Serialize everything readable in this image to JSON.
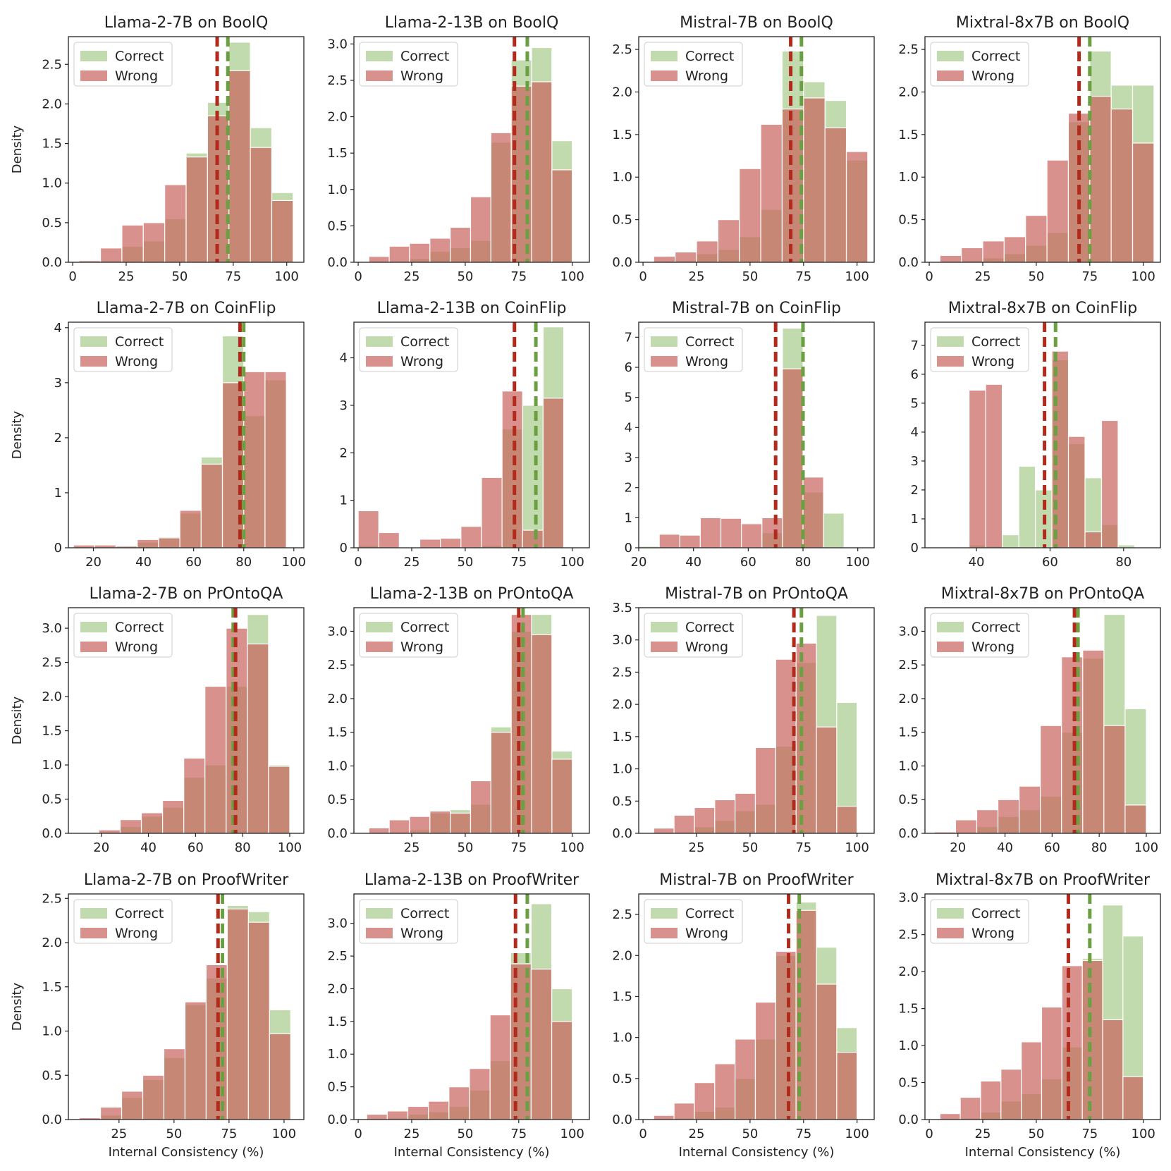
{
  "figure": {
    "legend": {
      "correct": "Correct",
      "wrong": "Wrong"
    },
    "xlabel": "Internal Consistency (%)",
    "ylabel": "Density",
    "colors": {
      "correct_fill": "#a9cc8f",
      "wrong_fill": "#c9675f",
      "correct_line": "#6aa041",
      "wrong_line": "#b22a1c",
      "overlap_hint": "#b07a5a"
    }
  },
  "chart_data": [
    {
      "type": "bar",
      "title": "Llama-2-7B on BoolQ",
      "xlim": [
        -2,
        108
      ],
      "ylim": [
        0,
        2.85
      ],
      "xticks": [
        0,
        25,
        50,
        75,
        100
      ],
      "yticks": [
        0.0,
        0.5,
        1.0,
        1.5,
        2.0,
        2.5
      ],
      "correct": {
        "edges": [
          3,
          13,
          23,
          33,
          43,
          53,
          63,
          73,
          83,
          93,
          103
        ],
        "values": [
          0.0,
          0.02,
          0.2,
          0.27,
          0.55,
          1.38,
          2.02,
          2.78,
          1.7,
          0.88
        ]
      },
      "wrong": {
        "edges": [
          3,
          13,
          23,
          33,
          43,
          53,
          63,
          73,
          83,
          93,
          103
        ],
        "values": [
          0.02,
          0.18,
          0.47,
          0.5,
          0.98,
          1.33,
          1.85,
          2.42,
          1.45,
          0.78
        ]
      },
      "mean_correct": 72.5,
      "mean_wrong": 67.5
    },
    {
      "type": "bar",
      "title": "Llama-2-13B on BoolQ",
      "xlim": [
        -2,
        108
      ],
      "ylim": [
        0,
        3.1
      ],
      "xticks": [
        0,
        25,
        50,
        75,
        100
      ],
      "yticks": [
        0.0,
        0.5,
        1.0,
        1.5,
        2.0,
        2.5,
        3.0
      ],
      "correct": {
        "edges": [
          5,
          14.5,
          24,
          33.5,
          43,
          52.5,
          62,
          71.5,
          81,
          90.5,
          100
        ],
        "values": [
          0.0,
          0.0,
          0.05,
          0.15,
          0.2,
          0.3,
          1.65,
          2.78,
          2.95,
          1.67
        ]
      },
      "wrong": {
        "edges": [
          5,
          14.5,
          24,
          33.5,
          43,
          52.5,
          62,
          71.5,
          81,
          90.5,
          100
        ],
        "values": [
          0.08,
          0.22,
          0.26,
          0.33,
          0.48,
          0.9,
          1.78,
          2.42,
          2.48,
          1.27
        ]
      },
      "mean_correct": 79,
      "mean_wrong": 73
    },
    {
      "type": "bar",
      "title": "Mistral-7B on BoolQ",
      "xlim": [
        -2,
        108
      ],
      "ylim": [
        0,
        2.65
      ],
      "xticks": [
        0,
        25,
        50,
        75,
        100
      ],
      "yticks": [
        0.0,
        0.5,
        1.0,
        1.5,
        2.0,
        2.5
      ],
      "correct": {
        "edges": [
          5,
          15,
          25,
          35,
          45,
          55,
          65,
          75,
          85,
          95,
          105
        ],
        "values": [
          0.0,
          0.02,
          0.1,
          0.15,
          0.3,
          0.62,
          2.48,
          2.12,
          1.9,
          1.2
        ]
      },
      "wrong": {
        "edges": [
          5,
          15,
          25,
          35,
          45,
          55,
          65,
          75,
          85,
          95,
          105
        ],
        "values": [
          0.07,
          0.12,
          0.25,
          0.5,
          1.1,
          1.62,
          1.8,
          1.93,
          1.58,
          1.3
        ]
      },
      "mean_correct": 74,
      "mean_wrong": 69
    },
    {
      "type": "bar",
      "title": "Mixtral-8x7B on BoolQ",
      "xlim": [
        -2,
        108
      ],
      "ylim": [
        0,
        2.65
      ],
      "xticks": [
        0,
        25,
        50,
        75,
        100
      ],
      "yticks": [
        0.0,
        0.5,
        1.0,
        1.5,
        2.0,
        2.5
      ],
      "correct": {
        "edges": [
          5,
          15,
          25,
          35,
          45,
          55,
          65,
          75,
          85,
          95,
          105
        ],
        "values": [
          0.0,
          0.02,
          0.05,
          0.1,
          0.2,
          0.35,
          1.65,
          2.48,
          2.08,
          2.08
        ]
      },
      "wrong": {
        "edges": [
          5,
          15,
          25,
          35,
          45,
          55,
          65,
          75,
          85,
          95,
          105
        ],
        "values": [
          0.08,
          0.17,
          0.25,
          0.3,
          0.55,
          1.2,
          1.75,
          1.95,
          1.8,
          1.4
        ]
      },
      "mean_correct": 75,
      "mean_wrong": 70
    },
    {
      "type": "bar",
      "title": "Llama-2-7B on CoinFlip",
      "xlim": [
        10,
        104
      ],
      "ylim": [
        0,
        4.1
      ],
      "xticks": [
        20,
        40,
        60,
        80,
        100
      ],
      "yticks": [
        0,
        1,
        2,
        3,
        4
      ],
      "correct": {
        "edges": [
          12,
          20.5,
          29,
          37.5,
          46,
          54.5,
          63,
          71.5,
          80,
          88.5,
          97
        ],
        "values": [
          0.0,
          0.0,
          0.0,
          0.1,
          0.2,
          0.63,
          1.65,
          3.85,
          2.4,
          3.05
        ]
      },
      "wrong": {
        "edges": [
          12,
          20.5,
          29,
          37.5,
          46,
          54.5,
          63,
          71.5,
          80,
          88.5,
          97
        ],
        "values": [
          0.05,
          0.05,
          0.03,
          0.15,
          0.18,
          0.68,
          1.52,
          3.0,
          3.2,
          3.2
        ]
      },
      "mean_correct": 80,
      "mean_wrong": 78.5
    },
    {
      "type": "bar",
      "title": "Llama-2-13B on CoinFlip",
      "xlim": [
        -2,
        108
      ],
      "ylim": [
        0,
        4.75
      ],
      "xticks": [
        0,
        25,
        50,
        75,
        100
      ],
      "yticks": [
        0,
        1,
        2,
        3,
        4
      ],
      "correct": {
        "edges": [
          0,
          9.6,
          19.2,
          28.8,
          38.4,
          48,
          57.6,
          67.2,
          76.8,
          86.4,
          96
        ],
        "values": [
          0.05,
          0.0,
          0.0,
          0.0,
          0.0,
          0.0,
          0.05,
          2.5,
          3.0,
          4.65
        ]
      },
      "wrong": {
        "edges": [
          0,
          9.6,
          19.2,
          28.8,
          38.4,
          48,
          57.6,
          67.2,
          76.8,
          86.4,
          96
        ],
        "values": [
          0.78,
          0.32,
          0.0,
          0.18,
          0.2,
          0.45,
          1.48,
          3.3,
          0.37,
          3.15
        ]
      },
      "mean_correct": 83,
      "mean_wrong": 73
    },
    {
      "type": "bar",
      "title": "Mistral-7B on CoinFlip",
      "xlim": [
        20,
        106
      ],
      "ylim": [
        0,
        7.5
      ],
      "xticks": [
        20,
        40,
        60,
        80,
        100
      ],
      "yticks": [
        0,
        1,
        2,
        3,
        4,
        5,
        6,
        7
      ],
      "correct": {
        "edges": [
          20,
          27.5,
          35,
          42.5,
          50,
          57.5,
          65,
          72.5,
          80,
          87.5,
          95
        ],
        "values": [
          0.05,
          0.0,
          0.0,
          0.0,
          0.0,
          0.0,
          0.5,
          7.3,
          1.85,
          1.15
        ]
      },
      "wrong": {
        "edges": [
          20,
          27.5,
          35,
          42.5,
          50,
          57.5,
          65,
          72.5,
          80,
          87.5,
          95
        ],
        "values": [
          0.0,
          0.45,
          0.42,
          1.0,
          0.98,
          0.8,
          1.0,
          5.95,
          2.35,
          0.0
        ]
      },
      "mean_correct": 80,
      "mean_wrong": 70
    },
    {
      "type": "bar",
      "title": "Mixtral-8x7B on CoinFlip",
      "xlim": [
        26,
        90
      ],
      "ylim": [
        0,
        7.8
      ],
      "xticks": [
        40,
        60,
        80
      ],
      "yticks": [
        0,
        1,
        2,
        3,
        4,
        5,
        6,
        7
      ],
      "correct": {
        "edges": [
          38,
          42.5,
          47,
          51.5,
          56,
          60.5,
          65,
          69.5,
          74,
          78.5,
          83
        ],
        "values": [
          0.1,
          0.05,
          0.45,
          2.82,
          2.0,
          6.5,
          3.6,
          2.42,
          0.8,
          0.1
        ]
      },
      "wrong": {
        "edges": [
          38,
          42.5,
          47,
          51.5,
          56,
          60.5,
          65,
          69.5,
          74,
          78.5,
          83
        ],
        "values": [
          5.45,
          5.65,
          0.0,
          0.0,
          0.0,
          6.8,
          3.85,
          0.55,
          4.4,
          0.0
        ]
      },
      "mean_correct": 61.5,
      "mean_wrong": 58.5
    },
    {
      "type": "bar",
      "title": "Llama-2-7B on PrOntoQA",
      "xlim": [
        6,
        106
      ],
      "ylim": [
        0,
        3.3
      ],
      "xticks": [
        20,
        40,
        60,
        80,
        100
      ],
      "yticks": [
        0.0,
        0.5,
        1.0,
        1.5,
        2.0,
        2.5,
        3.0
      ],
      "correct": {
        "edges": [
          10,
          19,
          28,
          37,
          46,
          55,
          64,
          73,
          82,
          91,
          100
        ],
        "values": [
          0.0,
          0.02,
          0.1,
          0.25,
          0.38,
          0.82,
          1.0,
          2.15,
          3.2,
          1.0
        ]
      },
      "wrong": {
        "edges": [
          10,
          19,
          28,
          37,
          46,
          55,
          64,
          73,
          82,
          91,
          100
        ],
        "values": [
          0.0,
          0.05,
          0.2,
          0.3,
          0.48,
          1.1,
          2.15,
          3.0,
          2.77,
          0.98
        ]
      },
      "mean_correct": 76,
      "mean_wrong": 77
    },
    {
      "type": "bar",
      "title": "Llama-2-13B on PrOntoQA",
      "xlim": [
        -2,
        108
      ],
      "ylim": [
        0,
        3.35
      ],
      "xticks": [
        25,
        50,
        75,
        100
      ],
      "yticks": [
        0.0,
        0.5,
        1.0,
        1.5,
        2.0,
        2.5,
        3.0
      ],
      "correct": {
        "edges": [
          5,
          14.5,
          24,
          33.5,
          43,
          52.5,
          62,
          71.5,
          81,
          90.5,
          100
        ],
        "values": [
          0.0,
          0.02,
          0.05,
          0.3,
          0.35,
          0.43,
          1.58,
          3.0,
          3.25,
          1.22
        ]
      },
      "wrong": {
        "edges": [
          5,
          14.5,
          24,
          33.5,
          43,
          52.5,
          62,
          71.5,
          81,
          90.5,
          100
        ],
        "values": [
          0.08,
          0.2,
          0.25,
          0.33,
          0.3,
          0.78,
          1.5,
          3.25,
          2.95,
          1.1
        ]
      },
      "mean_correct": 77,
      "mean_wrong": 75
    },
    {
      "type": "bar",
      "title": "Mistral-7B on PrOntoQA",
      "xlim": [
        -2,
        108
      ],
      "ylim": [
        0,
        3.5
      ],
      "xticks": [
        25,
        50,
        75,
        100
      ],
      "yticks": [
        0.0,
        0.5,
        1.0,
        1.5,
        2.0,
        2.5,
        3.0,
        3.5
      ],
      "correct": {
        "edges": [
          5,
          14.5,
          24,
          33.5,
          43,
          52.5,
          62,
          71.5,
          81,
          90.5,
          100
        ],
        "values": [
          0.0,
          0.02,
          0.1,
          0.2,
          0.35,
          0.45,
          1.35,
          2.65,
          3.38,
          2.03
        ]
      },
      "wrong": {
        "edges": [
          5,
          14.5,
          24,
          33.5,
          43,
          52.5,
          62,
          71.5,
          81,
          90.5,
          100
        ],
        "values": [
          0.08,
          0.28,
          0.4,
          0.52,
          0.62,
          1.33,
          2.7,
          2.95,
          1.65,
          0.42
        ]
      },
      "mean_correct": 74,
      "mean_wrong": 70.5
    },
    {
      "type": "bar",
      "title": "Mixtral-8x7B on PrOntoQA",
      "xlim": [
        6,
        106
      ],
      "ylim": [
        0,
        3.35
      ],
      "xticks": [
        20,
        40,
        60,
        80,
        100
      ],
      "yticks": [
        0.0,
        0.5,
        1.0,
        1.5,
        2.0,
        2.5,
        3.0
      ],
      "correct": {
        "edges": [
          10,
          19,
          28,
          37,
          46,
          55,
          64,
          73,
          82,
          91,
          100
        ],
        "values": [
          0.0,
          0.02,
          0.1,
          0.25,
          0.35,
          0.55,
          1.5,
          2.6,
          3.25,
          1.85
        ]
      },
      "wrong": {
        "edges": [
          10,
          19,
          28,
          37,
          46,
          55,
          64,
          73,
          82,
          91,
          100
        ],
        "values": [
          0.02,
          0.2,
          0.35,
          0.5,
          0.7,
          1.6,
          2.62,
          2.72,
          1.6,
          0.42
        ]
      },
      "mean_correct": 71,
      "mean_wrong": 69.5
    },
    {
      "type": "bar",
      "title": "Llama-2-7B on ProofWriter",
      "xlim": [
        2,
        109
      ],
      "ylim": [
        0,
        2.55
      ],
      "xticks": [
        25,
        50,
        75,
        100
      ],
      "yticks": [
        0.0,
        0.5,
        1.0,
        1.5,
        2.0,
        2.5
      ],
      "correct": {
        "edges": [
          7,
          16.6,
          26.2,
          35.8,
          45.4,
          55,
          64.6,
          74.2,
          83.8,
          93.4,
          103
        ],
        "values": [
          0.0,
          0.05,
          0.25,
          0.45,
          0.7,
          1.3,
          1.6,
          2.42,
          2.35,
          1.24
        ]
      },
      "wrong": {
        "edges": [
          7,
          16.6,
          26.2,
          35.8,
          45.4,
          55,
          64.6,
          74.2,
          83.8,
          93.4,
          103
        ],
        "values": [
          0.02,
          0.14,
          0.32,
          0.5,
          0.8,
          1.33,
          1.75,
          2.38,
          2.23,
          0.97
        ]
      },
      "mean_correct": 72,
      "mean_wrong": 70
    },
    {
      "type": "bar",
      "title": "Llama-2-13B on ProofWriter",
      "xlim": [
        -2,
        108
      ],
      "ylim": [
        0,
        3.45
      ],
      "xticks": [
        0,
        25,
        50,
        75,
        100
      ],
      "yticks": [
        0.0,
        0.5,
        1.0,
        1.5,
        2.0,
        2.5,
        3.0
      ],
      "correct": {
        "edges": [
          4,
          13.6,
          23.2,
          32.8,
          42.4,
          52,
          61.6,
          71.2,
          80.8,
          90.4,
          100
        ],
        "values": [
          0.0,
          0.03,
          0.08,
          0.12,
          0.2,
          0.45,
          0.9,
          2.55,
          3.3,
          2.0
        ]
      },
      "wrong": {
        "edges": [
          4,
          13.6,
          23.2,
          32.8,
          42.4,
          52,
          61.6,
          71.2,
          80.8,
          90.4,
          100
        ],
        "values": [
          0.08,
          0.13,
          0.2,
          0.28,
          0.5,
          0.78,
          1.6,
          2.38,
          2.3,
          1.5
        ]
      },
      "mean_correct": 79,
      "mean_wrong": 73.5
    },
    {
      "type": "bar",
      "title": "Mistral-7B on ProofWriter",
      "xlim": [
        -2,
        108
      ],
      "ylim": [
        0,
        2.75
      ],
      "xticks": [
        0,
        25,
        50,
        75,
        100
      ],
      "yticks": [
        0.0,
        0.5,
        1.0,
        1.5,
        2.0,
        2.5
      ],
      "correct": {
        "edges": [
          5,
          14.5,
          24,
          33.5,
          43,
          52.5,
          62,
          71.5,
          81,
          90.5,
          100
        ],
        "values": [
          0.0,
          0.02,
          0.1,
          0.15,
          0.5,
          0.98,
          2.0,
          2.65,
          2.1,
          1.12
        ]
      },
      "wrong": {
        "edges": [
          5,
          14.5,
          24,
          33.5,
          43,
          52.5,
          62,
          71.5,
          81,
          90.5,
          100
        ],
        "values": [
          0.05,
          0.2,
          0.45,
          0.68,
          0.98,
          1.43,
          2.05,
          2.55,
          1.65,
          0.82
        ]
      },
      "mean_correct": 73,
      "mean_wrong": 68
    },
    {
      "type": "bar",
      "title": "Mixtral-8x7B on ProofWriter",
      "xlim": [
        -2,
        108
      ],
      "ylim": [
        0,
        3.05
      ],
      "xticks": [
        0,
        25,
        50,
        75,
        100
      ],
      "yticks": [
        0.0,
        0.5,
        1.0,
        1.5,
        2.0,
        2.5,
        3.0
      ],
      "correct": {
        "edges": [
          5,
          14.5,
          24,
          33.5,
          43,
          52.5,
          62,
          71.5,
          81,
          90.5,
          100
        ],
        "values": [
          0.0,
          0.02,
          0.1,
          0.25,
          0.35,
          0.55,
          0.98,
          2.18,
          2.9,
          2.48
        ]
      },
      "wrong": {
        "edges": [
          5,
          14.5,
          24,
          33.5,
          43,
          52.5,
          62,
          71.5,
          81,
          90.5,
          100
        ],
        "values": [
          0.08,
          0.3,
          0.52,
          0.68,
          1.05,
          1.52,
          2.08,
          2.15,
          1.35,
          0.58
        ]
      },
      "mean_correct": 75,
      "mean_wrong": 65
    }
  ]
}
